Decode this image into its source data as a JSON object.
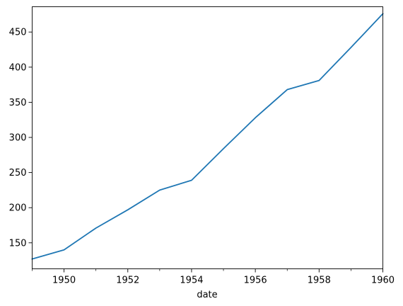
{
  "chart_data": {
    "type": "line",
    "title": "",
    "xlabel": "date",
    "ylabel": "",
    "xlim": [
      1949,
      1960
    ],
    "ylim": [
      113,
      486
    ],
    "grid": false,
    "legend": "none",
    "x_major_ticks": [
      1950,
      1952,
      1954,
      1956,
      1958,
      1960
    ],
    "x_tick_labels": [
      "1950",
      "1952",
      "1954",
      "1956",
      "1958",
      "1960"
    ],
    "x_minor_ticks": [
      1949,
      1951,
      1953,
      1955,
      1957,
      1959
    ],
    "y_ticks": [
      150,
      200,
      250,
      300,
      350,
      400,
      450
    ],
    "y_tick_labels": [
      "150",
      "200",
      "250",
      "300",
      "350",
      "400",
      "450"
    ],
    "series": [
      {
        "color": "#1f77b4",
        "x": [
          1949,
          1950,
          1951,
          1952,
          1953,
          1954,
          1955,
          1956,
          1957,
          1958,
          1959,
          1960
        ],
        "values": [
          127,
          140,
          171,
          197,
          225,
          239,
          284,
          328,
          368,
          381,
          428,
          476
        ]
      }
    ]
  }
}
